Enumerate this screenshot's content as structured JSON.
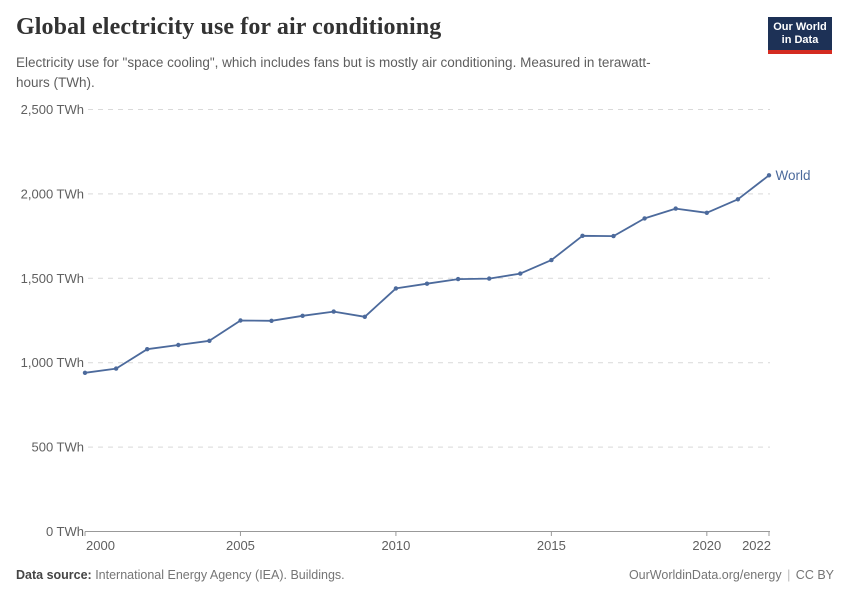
{
  "header": {
    "title": "Global electricity use for air conditioning",
    "subtitle": "Electricity use for \"space cooling\", which includes fans but is mostly air conditioning. Measured in terawatt-hours (TWh).",
    "logo": {
      "line1": "Our World",
      "line2": "in Data",
      "bg_color": "#1d3156",
      "bar_color": "#d42b21"
    }
  },
  "chart_data": {
    "type": "line",
    "title": "Global electricity use for air conditioning",
    "unit": "TWh",
    "x": [
      2000,
      2001,
      2002,
      2003,
      2004,
      2005,
      2006,
      2007,
      2008,
      2009,
      2010,
      2011,
      2012,
      2013,
      2014,
      2015,
      2016,
      2017,
      2018,
      2019,
      2020,
      2021,
      2022
    ],
    "series": [
      {
        "name": "World",
        "color": "#4c6a9c",
        "values": [
          940,
          965,
          1080,
          1105,
          1130,
          1250,
          1248,
          1278,
          1303,
          1272,
          1440,
          1468,
          1495,
          1498,
          1528,
          1608,
          1752,
          1750,
          1855,
          1913,
          1888,
          1968,
          2110
        ]
      }
    ],
    "ylim": [
      0,
      2500
    ],
    "y_ticks": [
      {
        "value": 0,
        "label": "0 TWh"
      },
      {
        "value": 500,
        "label": "500 TWh"
      },
      {
        "value": 1000,
        "label": "1,000 TWh"
      },
      {
        "value": 1500,
        "label": "1,500 TWh"
      },
      {
        "value": 2000,
        "label": "2,000 TWh"
      },
      {
        "value": 2500,
        "label": "2,500 TWh"
      }
    ],
    "x_ticks": [
      2000,
      2005,
      2010,
      2015,
      2020,
      2022
    ],
    "grid": "horizontal-dashed",
    "legend_position": "end-of-line",
    "colors": {
      "gridline": "#d9d9d9",
      "axis": "#999999",
      "tick_label": "#606060"
    }
  },
  "footer": {
    "datasource_label": "Data source:",
    "datasource_text": " International Energy Agency (IEA). Buildings.",
    "credit": "OurWorldinData.org/energy",
    "separator": "|",
    "license": "CC BY"
  }
}
